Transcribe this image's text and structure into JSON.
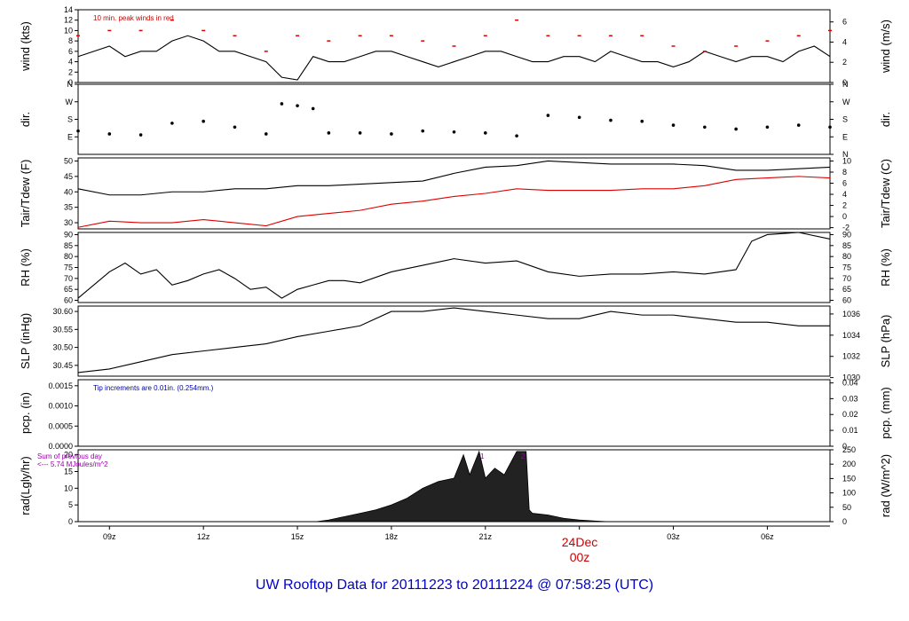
{
  "title": "UW Rooftop Data for 20111223  to  20111224 @ 07:58:25  (UTC)",
  "colors": {
    "series": "#000000",
    "dewpoint": "#dd0000",
    "peak": "#dd0000",
    "note_wind": "#cc0000",
    "note_pcp": "#0000aa",
    "note_rad": "#9900aa",
    "title": "#0000cc",
    "date": "#cc0000"
  },
  "x_axis": {
    "ticks": [
      {
        "hour": 1,
        "label": "09z"
      },
      {
        "hour": 4,
        "label": "12z"
      },
      {
        "hour": 7,
        "label": "15z"
      },
      {
        "hour": 10,
        "label": "18z"
      },
      {
        "hour": 13,
        "label": "21z"
      },
      {
        "hour": 19,
        "label": "03z"
      },
      {
        "hour": 22,
        "label": "06z"
      }
    ],
    "date_label": "24Dec",
    "date_sublabel": "00z",
    "date_hour": 16
  },
  "chart_data": [
    {
      "id": "wind",
      "type": "line",
      "ylabel_left": "wind (kts)",
      "ylabel_right": "wind (m/s)",
      "ylim": [
        0,
        14
      ],
      "left_ticks": [
        "0",
        "2",
        "4",
        "6",
        "8",
        "10",
        "12",
        "14"
      ],
      "right_ticks": [
        "0",
        "2",
        "4",
        "6"
      ],
      "right_tick_values": [
        0,
        3.89,
        7.78,
        11.66
      ],
      "annotation": "10 min. peak winds in red",
      "series": [
        {
          "name": "",
          "x": [
            0,
            0.5,
            1,
            1.5,
            2,
            2.5,
            3,
            3.5,
            4,
            4.5,
            5,
            5.5,
            6,
            6.5,
            7,
            7.5,
            8,
            8.5,
            9,
            9.5,
            10,
            10.5,
            11,
            11.5,
            12,
            12.5,
            13,
            13.5,
            14,
            14.5,
            15,
            15.5,
            16,
            16.5,
            17,
            17.5,
            18,
            18.5,
            19,
            19.5,
            20,
            20.5,
            21,
            21.5,
            22,
            22.5,
            23,
            23.5,
            24
          ],
          "y": [
            5,
            6,
            7,
            5,
            6,
            6,
            8,
            9,
            8,
            6,
            6,
            5,
            4,
            1,
            0.5,
            5,
            4,
            4,
            5,
            6,
            6,
            5,
            4,
            3,
            4,
            5,
            6,
            6,
            5,
            4,
            4,
            5,
            5,
            4,
            6,
            5,
            4,
            4,
            3,
            4,
            6,
            5,
            4,
            5,
            5,
            4,
            6,
            7,
            5
          ]
        },
        {
          "name": "",
          "x": [
            0,
            1,
            2,
            3,
            4,
            5,
            6,
            7,
            8,
            9,
            10,
            11,
            12,
            13,
            14,
            15,
            16,
            17,
            18,
            19,
            20,
            21,
            22,
            23,
            24
          ],
          "y": [
            9,
            10,
            10,
            12,
            10,
            9,
            6,
            9,
            8,
            9,
            9,
            8,
            7,
            9,
            12,
            9,
            9,
            9,
            9,
            7,
            6,
            7,
            8,
            9,
            10
          ]
        }
      ]
    },
    {
      "id": "dir",
      "type": "scatter",
      "ylabel_left": "dir.",
      "ylabel_right": "dir.",
      "ylim": [
        0,
        360
      ],
      "left_ticks": [
        "E",
        "S",
        "W",
        "N"
      ],
      "left_tick_values": [
        90,
        180,
        270,
        360
      ],
      "right_ticks": [
        "N",
        "E",
        "S",
        "W",
        "N"
      ],
      "right_tick_values": [
        0,
        90,
        180,
        270,
        360
      ],
      "series": [
        {
          "name": "",
          "x": [
            0,
            1,
            2,
            3,
            4,
            5,
            6,
            6.5,
            7,
            7.5,
            8,
            9,
            10,
            11,
            12,
            13,
            14,
            15,
            16,
            17,
            18,
            19,
            20,
            21,
            22,
            23,
            24
          ],
          "y": [
            120,
            105,
            100,
            160,
            170,
            140,
            105,
            260,
            250,
            235,
            110,
            110,
            105,
            120,
            115,
            110,
            95,
            200,
            190,
            175,
            170,
            150,
            140,
            130,
            140,
            150,
            140
          ]
        }
      ]
    },
    {
      "id": "temp",
      "type": "line",
      "ylabel_left": "Tair/Tdew (F)",
      "ylabel_right": "Tair/Tdew (C)",
      "ylim": [
        28,
        51
      ],
      "left_ticks": [
        "30",
        "35",
        "40",
        "45",
        "50"
      ],
      "left_tick_values": [
        30,
        35,
        40,
        45,
        50
      ],
      "right_ticks": [
        "-2",
        "0",
        "2",
        "4",
        "6",
        "8",
        "10"
      ],
      "right_tick_values": [
        28.4,
        32,
        35.6,
        39.2,
        42.8,
        46.4,
        50
      ],
      "series": [
        {
          "name": "",
          "x": [
            0,
            1,
            2,
            3,
            4,
            5,
            6,
            7,
            8,
            9,
            10,
            11,
            12,
            13,
            14,
            15,
            16,
            17,
            18,
            19,
            20,
            21,
            22,
            23,
            24
          ],
          "y": [
            41,
            39,
            39,
            40,
            40,
            41,
            41,
            42,
            42,
            42.5,
            43,
            43.5,
            46,
            48,
            48.5,
            50,
            49.5,
            49,
            49,
            49,
            48.5,
            47,
            47,
            47.5,
            48
          ]
        },
        {
          "name": "",
          "x": [
            0,
            1,
            2,
            3,
            4,
            5,
            6,
            7,
            8,
            9,
            10,
            11,
            12,
            13,
            14,
            15,
            16,
            17,
            18,
            19,
            20,
            21,
            22,
            23,
            24
          ],
          "y": [
            28.5,
            30.5,
            30,
            30,
            31,
            30,
            29,
            32,
            33,
            34,
            36,
            37,
            38.5,
            39.5,
            41,
            40.5,
            40.5,
            40.5,
            41,
            41,
            42,
            44,
            44.5,
            45,
            44.5
          ]
        }
      ]
    },
    {
      "id": "rh",
      "type": "line",
      "ylabel_left": "RH (%)",
      "ylabel_right": "RH (%)",
      "ylim": [
        59,
        91
      ],
      "left_ticks": [
        "60",
        "65",
        "70",
        "75",
        "80",
        "85",
        "90"
      ],
      "left_tick_values": [
        60,
        65,
        70,
        75,
        80,
        85,
        90
      ],
      "right_ticks": [
        "60",
        "65",
        "70",
        "75",
        "80",
        "85",
        "90"
      ],
      "right_tick_values": [
        60,
        65,
        70,
        75,
        80,
        85,
        90
      ],
      "series": [
        {
          "name": "",
          "x": [
            0,
            1,
            1.5,
            2,
            2.5,
            3,
            3.5,
            4,
            4.5,
            5,
            5.5,
            6,
            6.5,
            7,
            7.5,
            8,
            8.5,
            9,
            10,
            11,
            12,
            13,
            14,
            15,
            16,
            17,
            18,
            19,
            20,
            21,
            21.5,
            22,
            23,
            24
          ],
          "y": [
            61,
            73,
            77,
            72,
            74,
            67,
            69,
            72,
            74,
            70,
            65,
            66,
            61,
            65,
            67,
            69,
            69,
            68,
            73,
            76,
            79,
            77,
            78,
            73,
            71,
            72,
            72,
            73,
            72,
            74,
            87,
            90,
            91,
            88
          ]
        }
      ]
    },
    {
      "id": "slp",
      "type": "line",
      "ylabel_left": "SLP (inHg)",
      "ylabel_right": "SLP (hPa)",
      "ylim": [
        30.42,
        30.615
      ],
      "left_ticks": [
        "30.45",
        "30.50",
        "30.55",
        "30.60"
      ],
      "left_tick_values": [
        30.45,
        30.5,
        30.55,
        30.6
      ],
      "right_ticks": [
        "1030",
        "1032",
        "1034",
        "1036"
      ],
      "right_tick_values": [
        30.416,
        30.475,
        30.534,
        30.593
      ],
      "series": [
        {
          "name": "",
          "x": [
            0,
            1,
            2,
            3,
            4,
            5,
            6,
            7,
            8,
            9,
            10,
            11,
            12,
            13,
            14,
            15,
            16,
            17,
            18,
            19,
            20,
            21,
            22,
            23,
            24
          ],
          "y": [
            30.43,
            30.44,
            30.46,
            30.48,
            30.49,
            30.5,
            30.51,
            30.53,
            30.545,
            30.56,
            30.6,
            30.6,
            30.61,
            30.6,
            30.59,
            30.58,
            30.58,
            30.6,
            30.59,
            30.59,
            30.58,
            30.57,
            30.57,
            30.56,
            30.56
          ]
        }
      ]
    },
    {
      "id": "pcp",
      "type": "line",
      "ylabel_left": "pcp. (in)",
      "ylabel_right": "pcp. (mm)",
      "ylim": [
        0,
        0.00165
      ],
      "left_ticks": [
        "0.0000",
        "0.0005",
        "0.0010",
        "0.0015"
      ],
      "left_tick_values": [
        0,
        0.0005,
        0.001,
        0.0015
      ],
      "right_ticks": [
        "0",
        "0.01",
        "0.02",
        "0.03",
        "0.04"
      ],
      "right_tick_values": [
        0,
        0.000394,
        0.000787,
        0.00118,
        0.00157
      ],
      "annotation": "Tip increments are 0.01in. (0.254mm.)",
      "series": [
        {
          "name": "",
          "x": [
            0,
            24
          ],
          "y": [
            0,
            0
          ]
        }
      ]
    },
    {
      "id": "rad",
      "type": "area",
      "ylabel_left": "rad(Lgly/hr)",
      "ylabel_right": "rad (W/m^2)",
      "ylim": [
        0,
        21.5
      ],
      "left_ticks": [
        "0",
        "5",
        "10",
        "15",
        "20"
      ],
      "left_tick_values": [
        0,
        5,
        10,
        15,
        20
      ],
      "right_ticks": [
        "0",
        "50",
        "100",
        "150",
        "200",
        "250"
      ],
      "right_tick_values": [
        0,
        4.3,
        8.6,
        12.9,
        17.2,
        21.5
      ],
      "annotation_lines": [
        "Sum of previous day",
        "<--- 5.74 MJoules/m^2"
      ],
      "markers": [
        {
          "label": "1",
          "x": 12.9
        },
        {
          "label": "2",
          "x": 14.2
        }
      ],
      "series": [
        {
          "name": "",
          "x": [
            7.6,
            8,
            8.5,
            9,
            9.5,
            10,
            10.5,
            11,
            11.5,
            12,
            12.3,
            12.5,
            12.8,
            13,
            13.3,
            13.6,
            14,
            14.3,
            14.4,
            14.5,
            15,
            15.5,
            16,
            16.5,
            16.9
          ],
          "y": [
            0,
            0.5,
            1.5,
            2.5,
            3.5,
            5,
            7,
            10,
            12,
            13,
            20,
            14,
            21,
            13,
            16,
            14,
            21,
            21,
            3.5,
            2.5,
            2,
            1,
            0.5,
            0.2,
            0
          ]
        }
      ]
    }
  ]
}
